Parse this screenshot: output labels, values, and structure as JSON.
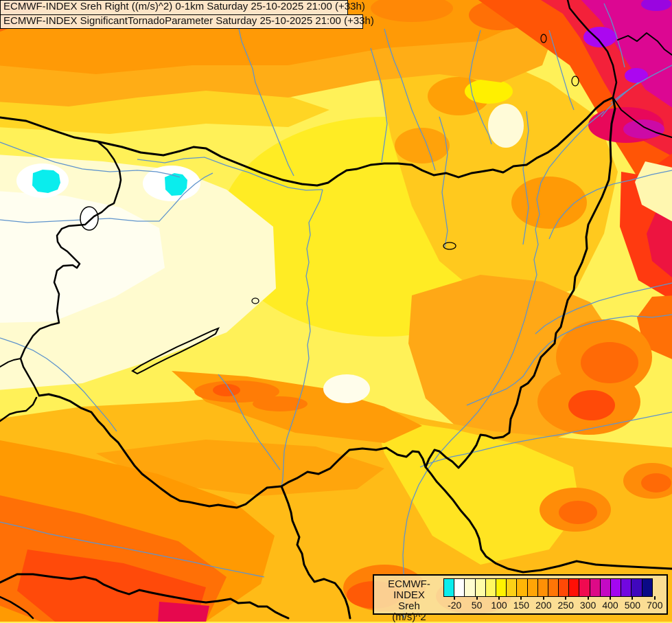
{
  "header": {
    "line1": "ECMWF-INDEX Sreh Right ((m/s)^2) 0-1km Saturday 25-10-2025 21:00 (+33h)",
    "line2": "ECMWF-INDEX SignificantTornadoParameter Saturday 25-10-2025 21:00 (+33h)"
  },
  "legend": {
    "label_lines": [
      "ECMWF-INDEX",
      "Sreh",
      "(m/s)^2"
    ],
    "tick_labels": [
      "-20",
      "50",
      "100",
      "150",
      "200",
      "250",
      "300",
      "400",
      "500",
      "700"
    ],
    "box_colors": [
      "#0AEDED",
      "#FFFFFF",
      "#FFFDD0",
      "#FFFCA8",
      "#FFF760",
      "#FFF200",
      "#FCD116",
      "#FFB606",
      "#FFA506",
      "#FF9006",
      "#FF7506",
      "#FF4906",
      "#FF0F06",
      "#F00A50",
      "#DD0A87",
      "#C40AC4",
      "#A307F0",
      "#7207E0",
      "#4007BD",
      "#0A0A86"
    ]
  },
  "map": {
    "border_color": "#000000",
    "river_color": "#5E93CC",
    "negative_patch_color": "#0AEDED"
  }
}
